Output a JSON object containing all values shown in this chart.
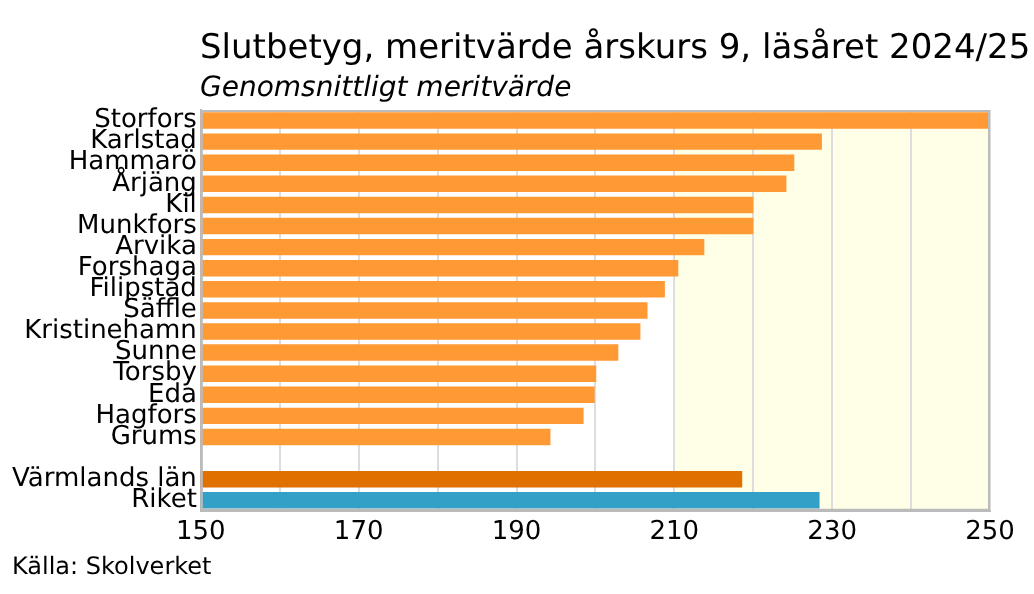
{
  "chart_data": {
    "type": "bar",
    "orientation": "horizontal",
    "title": "Slutbetyg, meritvärde årskurs 9, läsåret 2024/25",
    "subtitle": "Genomsnittligt meritvärde",
    "categories": [
      "Storfors",
      "Karlstad",
      "Hammarö",
      "Årjäng",
      "Kil",
      "Munkfors",
      "Arvika",
      "Forshaga",
      "Filipstad",
      "Säffle",
      "Kristinehamn",
      "Sunne",
      "Torsby",
      "Eda",
      "Hagfors",
      "Grums",
      null,
      "Värmlands län",
      "Riket"
    ],
    "values": [
      250,
      228.7,
      225.2,
      224.2,
      220,
      220,
      213.8,
      210.5,
      208.8,
      206.6,
      205.7,
      202.9,
      200.1,
      199.9,
      198.5,
      194.3,
      null,
      218.6,
      228.4
    ],
    "colors": [
      "#ff9933",
      "#ff9933",
      "#ff9933",
      "#ff9933",
      "#ff9933",
      "#ff9933",
      "#ff9933",
      "#ff9933",
      "#ff9933",
      "#ff9933",
      "#ff9933",
      "#ff9933",
      "#ff9933",
      "#ff9933",
      "#ff9933",
      "#ff9933",
      "#ff9933",
      "#e07000",
      "#33a0c8"
    ],
    "xlim": [
      150,
      250
    ],
    "xticks": [
      150,
      {
        "value": 160,
        "label": null
      },
      170,
      {
        "value": 180,
        "label": null
      },
      190,
      {
        "value": 200,
        "label": null
      },
      210,
      {
        "value": 220,
        "label": null
      },
      230,
      {
        "value": 240,
        "label": null
      },
      250
    ],
    "bands": [
      {
        "axis": "x",
        "from": 210,
        "to": 250,
        "color": "#ffffe8"
      }
    ],
    "grid": "x",
    "legend": false,
    "annotations": [
      "Källa: Skolverket"
    ]
  }
}
